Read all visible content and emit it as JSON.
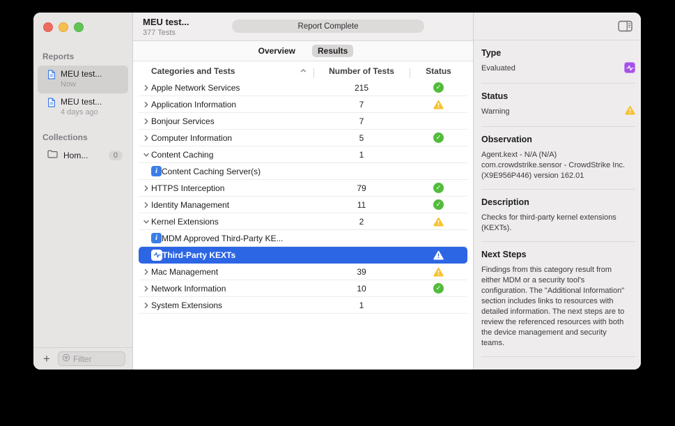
{
  "titlebar": {
    "title": "MEU test...",
    "subtitle": "377 Tests",
    "progress_label": "Report Complete"
  },
  "tabs": {
    "overview": "Overview",
    "results": "Results"
  },
  "sidebar": {
    "reports_header": "Reports",
    "reports": [
      {
        "name": "MEU test...",
        "time": "Now",
        "selected": true
      },
      {
        "name": "MEU test...",
        "time": "4 days ago",
        "selected": false
      }
    ],
    "collections_header": "Collections",
    "collections": [
      {
        "name": "Hom...",
        "count": "0"
      }
    ],
    "add_button": "+",
    "filter_placeholder": "Filter"
  },
  "table": {
    "columns": {
      "categories": "Categories and Tests",
      "tests": "Number of Tests",
      "status": "Status"
    },
    "rows": [
      {
        "label": "Apple Network Services",
        "tests": "215",
        "status": "success",
        "disclosure": "collapsed",
        "indent": 0
      },
      {
        "label": "Application Information",
        "tests": "7",
        "status": "warning",
        "disclosure": "collapsed",
        "indent": 0
      },
      {
        "label": "Bonjour Services",
        "tests": "7",
        "status": "none",
        "disclosure": "collapsed",
        "indent": 0
      },
      {
        "label": "Computer Information",
        "tests": "5",
        "status": "success",
        "disclosure": "collapsed",
        "indent": 0
      },
      {
        "label": "Content Caching",
        "tests": "1",
        "status": "none",
        "disclosure": "expanded",
        "indent": 0
      },
      {
        "label": "Content Caching Server(s)",
        "tests": "",
        "status": "none",
        "disclosure": "none",
        "indent": 1,
        "icon": "info"
      },
      {
        "label": "HTTPS Interception",
        "tests": "79",
        "status": "success",
        "disclosure": "collapsed",
        "indent": 0
      },
      {
        "label": "Identity Management",
        "tests": "11",
        "status": "success",
        "disclosure": "collapsed",
        "indent": 0
      },
      {
        "label": "Kernel Extensions",
        "tests": "2",
        "status": "warning",
        "disclosure": "expanded",
        "indent": 0
      },
      {
        "label": "MDM Approved Third-Party KE...",
        "tests": "",
        "status": "none",
        "disclosure": "none",
        "indent": 1,
        "icon": "info"
      },
      {
        "label": "Third-Party KEXTs",
        "tests": "",
        "status": "warning",
        "disclosure": "none",
        "indent": 1,
        "icon": "pulse",
        "selected": true
      },
      {
        "label": "Mac Management",
        "tests": "39",
        "status": "warning",
        "disclosure": "collapsed",
        "indent": 0
      },
      {
        "label": "Network Information",
        "tests": "10",
        "status": "success",
        "disclosure": "collapsed",
        "indent": 0
      },
      {
        "label": "System Extensions",
        "tests": "1",
        "status": "none",
        "disclosure": "collapsed",
        "indent": 0
      }
    ]
  },
  "inspector": {
    "sections": [
      {
        "title": "Type",
        "body": "Evaluated",
        "icon": "pulse-purple"
      },
      {
        "title": "Status",
        "body": "Warning",
        "icon": "warning"
      },
      {
        "title": "Observation",
        "body": "Agent.kext - N/A (N/A)\ncom.crowdstrike.sensor - CrowdStrike Inc.\n(X9E956P446) version 162.01",
        "icon": ""
      },
      {
        "title": "Description",
        "body": "Checks for third-party kernel extensions (KEXTs).",
        "icon": ""
      },
      {
        "title": "Next Steps",
        "body": "Findings from this category result from either MDM or a security tool's configuration. The \"Additional Information\" section includes links to resources with detailed information. The next steps are to review the referenced resources with both the device management and security teams.",
        "icon": ""
      }
    ]
  },
  "colors": {
    "accent_blue": "#2d66e4",
    "success_green": "#53bb3b",
    "warning_yellow": "#f7c231",
    "info_blue": "#3b7de8",
    "type_purple": "#a550e8"
  }
}
